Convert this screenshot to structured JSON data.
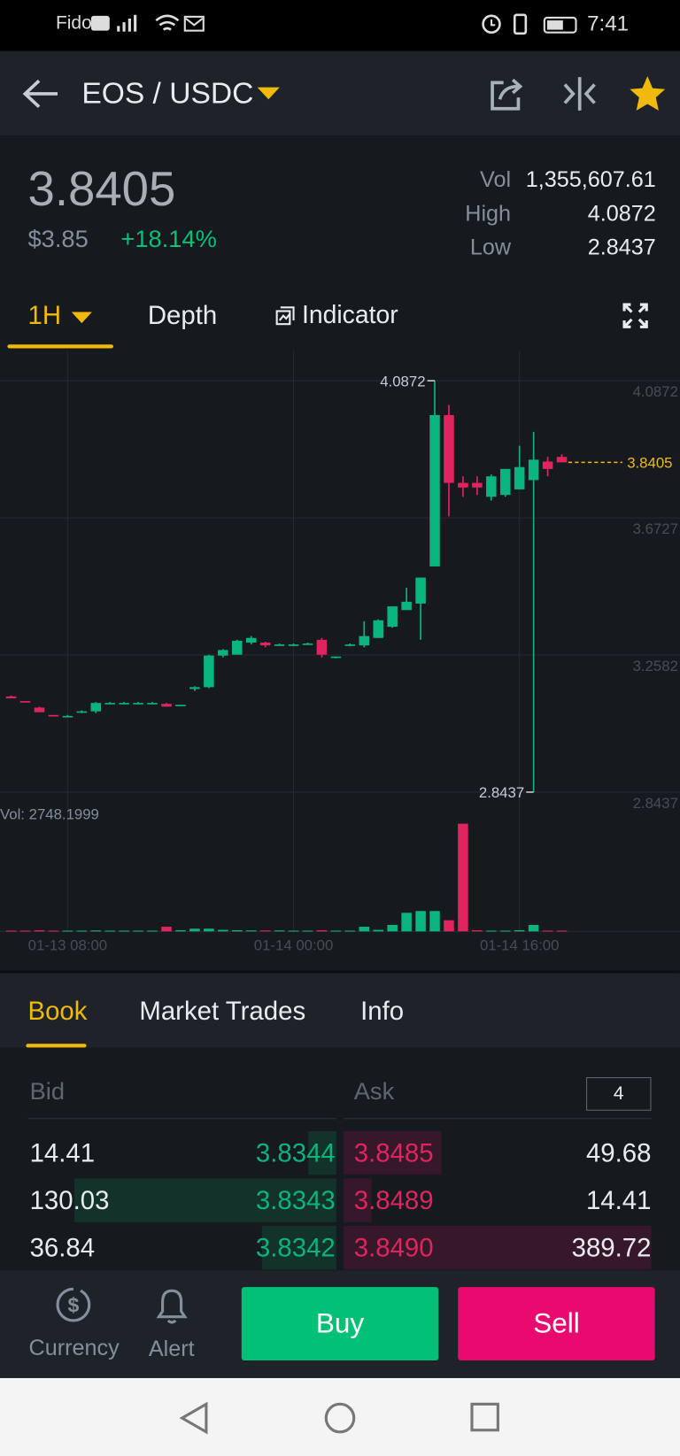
{
  "status_bar": {
    "carrier": "Fido",
    "time": "7:41"
  },
  "header": {
    "pair": "EOS / USDC"
  },
  "ticker": {
    "price": "3.8405",
    "fiat_price": "$3.85",
    "change": "+18.14%",
    "stats": [
      {
        "label": "Vol",
        "value": "1,355,607.61"
      },
      {
        "label": "High",
        "value": "4.0872"
      },
      {
        "label": "Low",
        "value": "2.8437"
      }
    ]
  },
  "chart_tabs": {
    "interval": "1H",
    "depth": "Depth",
    "indicator": "Indicator"
  },
  "chart": {
    "type": "candlestick",
    "categories": [
      null,
      null,
      null,
      null,
      "01-13 08:00",
      null,
      null,
      null,
      null,
      null,
      null,
      null,
      null,
      null,
      null,
      null,
      null,
      null,
      null,
      null,
      "01-14 00:00",
      null,
      null,
      null,
      null,
      null,
      null,
      null,
      null,
      null,
      null,
      null,
      null,
      null,
      null,
      null,
      "01-14 16:00",
      null,
      null,
      null
    ],
    "open": [
      3.1329,
      3.1189,
      3.0993,
      3.0768,
      3.074,
      3.0852,
      3.088,
      3.1133,
      3.1133,
      3.1133,
      3.1133,
      3.1105,
      3.1049,
      3.1554,
      3.161,
      3.2564,
      3.2592,
      3.2957,
      3.2957,
      3.2901,
      3.2901,
      3.2929,
      3.3041,
      3.2508,
      3.2873,
      3.2873,
      3.3098,
      3.3434,
      3.394,
      3.4136,
      3.5259,
      3.9834,
      3.7785,
      3.7785,
      3.7364,
      3.742,
      3.7588,
      3.7869,
      3.843,
      3.8571
    ],
    "high": [
      3.1357,
      3.1189,
      3.1021,
      3.0768,
      3.0768,
      3.0908,
      3.1161,
      3.1161,
      3.1161,
      3.1161,
      3.1161,
      3.1133,
      3.1077,
      3.1638,
      3.2592,
      3.2761,
      3.3041,
      3.3154,
      3.2985,
      3.2929,
      3.2929,
      3.2957,
      3.3098,
      3.2536,
      3.2929,
      3.3603,
      3.3659,
      3.4052,
      3.4613,
      3.4922,
      4.0872,
      4.0144,
      3.7981,
      3.7981,
      3.8037,
      3.8206,
      3.8907,
      3.9328,
      3.8571,
      3.8655
    ],
    "low": [
      3.1273,
      3.1161,
      3.0852,
      3.074,
      3.0712,
      3.0824,
      3.0824,
      3.1105,
      3.1105,
      3.1105,
      3.1105,
      3.1021,
      3.1049,
      3.1498,
      3.1582,
      3.2508,
      3.2592,
      3.2901,
      3.2817,
      3.2873,
      3.2873,
      3.2901,
      3.2508,
      3.248,
      3.2845,
      3.2817,
      3.3098,
      3.3406,
      3.394,
      3.3041,
      3.5259,
      3.6774,
      3.7364,
      3.742,
      3.7252,
      3.7364,
      3.7588,
      2.8437,
      3.7981,
      3.843
    ],
    "close": [
      3.1273,
      3.1161,
      3.0852,
      3.074,
      3.074,
      3.088,
      3.1133,
      3.1133,
      3.1133,
      3.1133,
      3.1133,
      3.1021,
      3.1077,
      3.161,
      3.2564,
      3.2733,
      3.3013,
      3.3098,
      3.2873,
      3.2901,
      3.2901,
      3.2929,
      3.2592,
      3.2536,
      3.2901,
      3.3154,
      3.3631,
      3.4052,
      3.4192,
      3.4922,
      3.9834,
      3.7785,
      3.7644,
      3.7644,
      3.7981,
      3.8206,
      3.8262,
      3.8486,
      3.8206,
      3.8405
    ],
    "volume": [
      20,
      20,
      30,
      20,
      20,
      20,
      25,
      20,
      20,
      20,
      20,
      120,
      30,
      70,
      70,
      40,
      30,
      25,
      25,
      25,
      20,
      20,
      30,
      20,
      20,
      120,
      40,
      165,
      475,
      520,
      520,
      285,
      2748.1999,
      30,
      20,
      20,
      30,
      165,
      20,
      20
    ],
    "ylim": [
      2.8437,
      4.0872
    ],
    "yticks": [
      4.0872,
      3.6727,
      3.2582,
      2.8437
    ],
    "volume_ylim": [
      0,
      2748.1999
    ],
    "volume_label": "Vol: 2748.1999",
    "high_marker": 4.0872,
    "low_marker": 2.8437,
    "last_price": 3.8405,
    "up_color": "#0ab47d",
    "down_color": "#e0245e",
    "last_price_color": "#f0b90b",
    "grid": true
  },
  "book": {
    "tabs": [
      "Book",
      "Market Trades",
      "Info"
    ],
    "bid_header": "Bid",
    "ask_header": "Ask",
    "precision": "4",
    "rows": [
      {
        "bid_amount": "14.41",
        "bid_price": "3.8344",
        "ask_price": "3.8485",
        "ask_amount": "49.68"
      },
      {
        "bid_amount": "130.03",
        "bid_price": "3.8343",
        "ask_price": "3.8489",
        "ask_amount": "14.41"
      },
      {
        "bid_amount": "36.84",
        "bid_price": "3.8342",
        "ask_price": "3.8490",
        "ask_amount": "389.72"
      }
    ]
  },
  "actions": {
    "currency": "Currency",
    "alert": "Alert",
    "buy": "Buy",
    "sell": "Sell"
  }
}
